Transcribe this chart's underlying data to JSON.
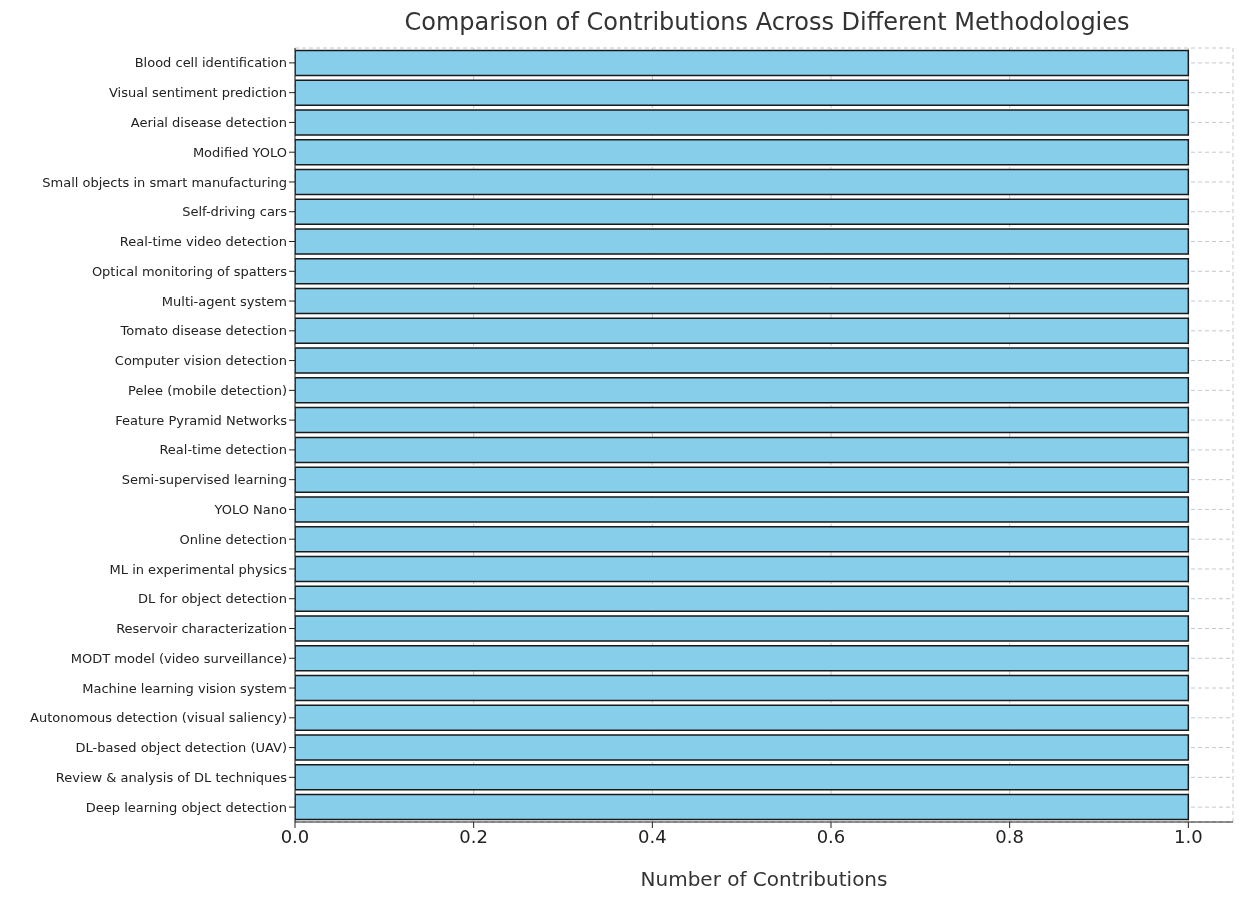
{
  "chart_data": {
    "type": "bar",
    "orientation": "horizontal",
    "title": "Comparison of Contributions Across Different Methodologies",
    "xlabel": "Number of Contributions",
    "categories": [
      "Blood cell identification",
      "Visual sentiment prediction",
      "Aerial disease detection",
      "Modified YOLO",
      "Small objects in smart manufacturing",
      "Self-driving cars",
      "Real-time video detection",
      "Optical monitoring of spatters",
      "Multi-agent system",
      "Tomato disease detection",
      "Computer vision detection",
      "Pelee (mobile detection)",
      "Feature Pyramid Networks",
      "Real-time detection",
      "Semi-supervised learning",
      "YOLO Nano",
      "Online detection",
      "ML in experimental physics",
      "DL for object detection",
      "Reservoir characterization",
      "MODT model (video surveillance)",
      "Machine learning vision system",
      "Autonomous detection (visual saliency)",
      "DL-based object detection (UAV)",
      "Review & analysis of DL techniques",
      "Deep learning object detection"
    ],
    "values": [
      1,
      1,
      1,
      1,
      1,
      1,
      1,
      1,
      1,
      1,
      1,
      1,
      1,
      1,
      1,
      1,
      1,
      1,
      1,
      1,
      1,
      1,
      1,
      1,
      1,
      1
    ],
    "color": "#87ceeb",
    "xlim": [
      0,
      1.05
    ],
    "xticks": [
      {
        "value": 0,
        "label": "0.0"
      },
      {
        "value": 0.2,
        "label": "0.2"
      },
      {
        "value": 0.4,
        "label": "0.4"
      },
      {
        "value": 0.6,
        "label": "0.6"
      },
      {
        "value": 0.8,
        "label": "0.8"
      },
      {
        "value": 1,
        "label": "1.0"
      }
    ],
    "grid": true
  }
}
